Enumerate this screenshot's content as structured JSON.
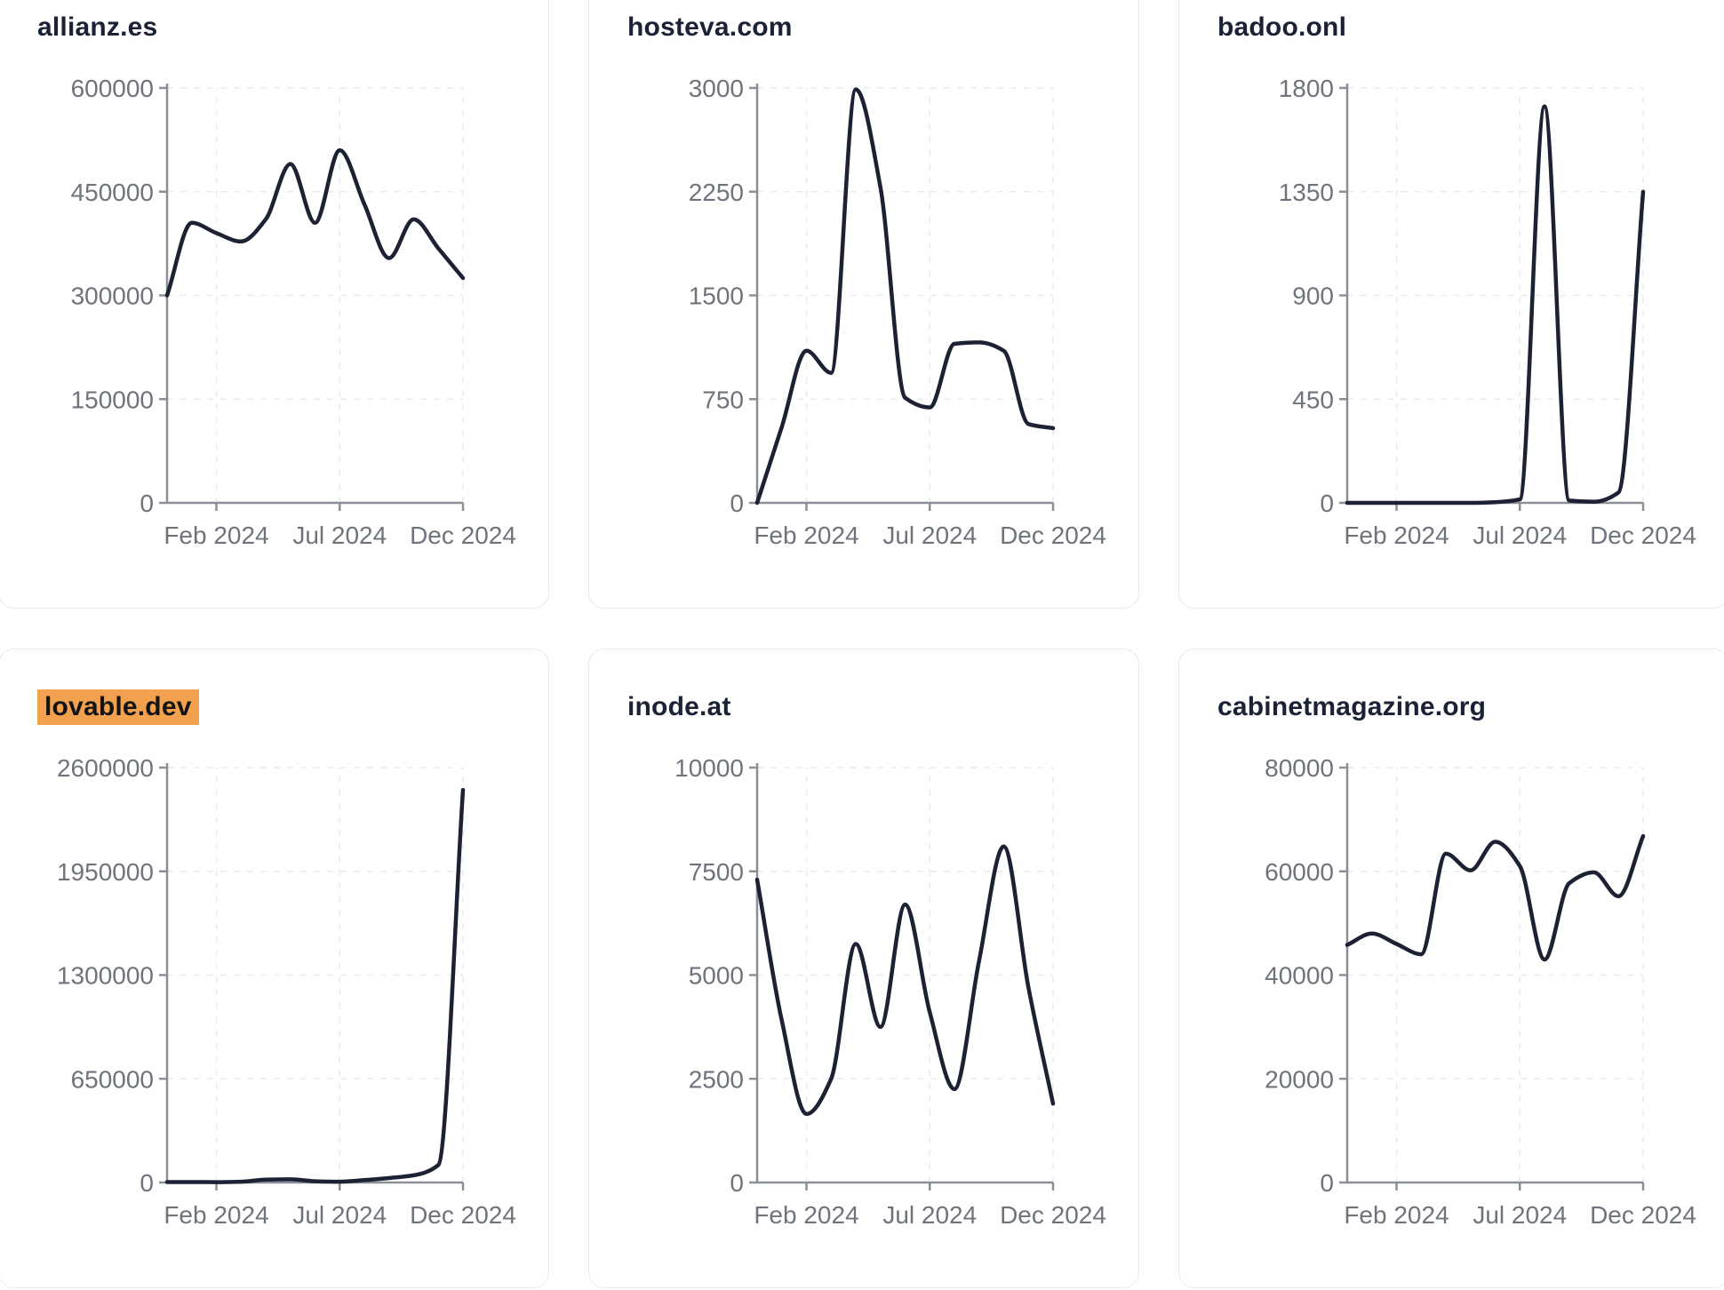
{
  "page": {
    "background": "#ffffff",
    "card_border": "#e7eaf1",
    "title_color": "#1b2236",
    "highlight_background": "#f2a24e",
    "highlight_text": "#141414",
    "axis_color": "#8b9097",
    "tick_label_color": "#6e737c",
    "gridline_color": "#e9eaed",
    "line_color": "#1c2134"
  },
  "chart_data": [
    {
      "type": "line",
      "title": "allianz.es",
      "highlighted": false,
      "x": [
        "Dec 2023",
        "Jan 2024",
        "Feb 2024",
        "Mar 2024",
        "Apr 2024",
        "May 2024",
        "Jun 2024",
        "Jul 2024",
        "Aug 2024",
        "Sep 2024",
        "Oct 2024",
        "Nov 2024",
        "Dec 2024"
      ],
      "values": [
        300000,
        405000,
        390000,
        378000,
        410000,
        490000,
        405000,
        510000,
        432000,
        354000,
        410000,
        368000,
        325000
      ],
      "ylim": [
        0,
        600000
      ],
      "y_ticks": [
        0,
        150000,
        300000,
        450000,
        600000
      ],
      "x_tick_labels": [
        "Feb 2024",
        "Jul 2024",
        "Dec 2024"
      ],
      "x_tick_indices": [
        2,
        7,
        12
      ],
      "grid": "dashed",
      "legend": "none"
    },
    {
      "type": "line",
      "title": "hosteva.com",
      "highlighted": false,
      "x": [
        "Dec 2023",
        "Jan 2024",
        "Feb 2024",
        "Mar 2024",
        "Apr 2024",
        "May 2024",
        "Jun 2024",
        "Jul 2024",
        "Aug 2024",
        "Sep 2024",
        "Oct 2024",
        "Nov 2024",
        "Dec 2024"
      ],
      "values": [
        0,
        550,
        1100,
        940,
        2990,
        2280,
        760,
        690,
        1150,
        1160,
        1100,
        570,
        540
      ],
      "ylim": [
        0,
        3000
      ],
      "y_ticks": [
        0,
        750,
        1500,
        2250,
        3000
      ],
      "x_tick_labels": [
        "Feb 2024",
        "Jul 2024",
        "Dec 2024"
      ],
      "x_tick_indices": [
        2,
        7,
        12
      ],
      "grid": "dashed",
      "legend": "none"
    },
    {
      "type": "line",
      "title": "badoo.onl",
      "highlighted": false,
      "x": [
        "Dec 2023",
        "Jan 2024",
        "Feb 2024",
        "Mar 2024",
        "Apr 2024",
        "May 2024",
        "Jun 2024",
        "Jul 2024",
        "Aug 2024",
        "Sep 2024",
        "Oct 2024",
        "Nov 2024",
        "Dec 2024"
      ],
      "values": [
        0,
        0,
        0,
        0,
        0,
        0,
        3,
        15,
        1720,
        10,
        5,
        45,
        1350
      ],
      "ylim": [
        0,
        1800
      ],
      "y_ticks": [
        0,
        450,
        900,
        1350,
        1800
      ],
      "x_tick_labels": [
        "Feb 2024",
        "Jul 2024",
        "Dec 2024"
      ],
      "x_tick_indices": [
        2,
        7,
        12
      ],
      "grid": "dashed",
      "legend": "none"
    },
    {
      "type": "line",
      "title": "lovable.dev",
      "highlighted": true,
      "x": [
        "Dec 2023",
        "Jan 2024",
        "Feb 2024",
        "Mar 2024",
        "Apr 2024",
        "May 2024",
        "Jun 2024",
        "Jul 2024",
        "Aug 2024",
        "Sep 2024",
        "Oct 2024",
        "Nov 2024",
        "Dec 2024"
      ],
      "values": [
        3000,
        3000,
        2000,
        5000,
        18000,
        20000,
        8000,
        5000,
        15000,
        28000,
        45000,
        110000,
        2460000
      ],
      "ylim": [
        0,
        2600000
      ],
      "y_ticks": [
        0,
        650000,
        1300000,
        1950000,
        2600000
      ],
      "x_tick_labels": [
        "Feb 2024",
        "Jul 2024",
        "Dec 2024"
      ],
      "x_tick_indices": [
        2,
        7,
        12
      ],
      "grid": "dashed",
      "legend": "none"
    },
    {
      "type": "line",
      "title": "inode.at",
      "highlighted": false,
      "x": [
        "Dec 2023",
        "Jan 2024",
        "Feb 2024",
        "Mar 2024",
        "Apr 2024",
        "May 2024",
        "Jun 2024",
        "Jul 2024",
        "Aug 2024",
        "Sep 2024",
        "Oct 2024",
        "Nov 2024",
        "Dec 2024"
      ],
      "values": [
        7300,
        3900,
        1650,
        2500,
        5750,
        3750,
        6700,
        4100,
        2250,
        5350,
        8100,
        4700,
        1900
      ],
      "ylim": [
        0,
        10000
      ],
      "y_ticks": [
        0,
        2500,
        5000,
        7500,
        10000
      ],
      "x_tick_labels": [
        "Feb 2024",
        "Jul 2024",
        "Dec 2024"
      ],
      "x_tick_indices": [
        2,
        7,
        12
      ],
      "grid": "dashed",
      "legend": "none"
    },
    {
      "type": "line",
      "title": "cabinetmagazine.org",
      "highlighted": false,
      "x": [
        "Dec 2023",
        "Jan 2024",
        "Feb 2024",
        "Mar 2024",
        "Apr 2024",
        "May 2024",
        "Jun 2024",
        "Jul 2024",
        "Aug 2024",
        "Sep 2024",
        "Oct 2024",
        "Nov 2024",
        "Dec 2024"
      ],
      "values": [
        45800,
        48000,
        46000,
        44000,
        63400,
        60200,
        65700,
        61000,
        43000,
        57700,
        59800,
        55200,
        66800
      ],
      "ylim": [
        0,
        80000
      ],
      "y_ticks": [
        0,
        20000,
        40000,
        60000,
        80000
      ],
      "x_tick_labels": [
        "Feb 2024",
        "Jul 2024",
        "Dec 2024"
      ],
      "x_tick_indices": [
        2,
        7,
        12
      ],
      "grid": "dashed",
      "legend": "none"
    }
  ]
}
